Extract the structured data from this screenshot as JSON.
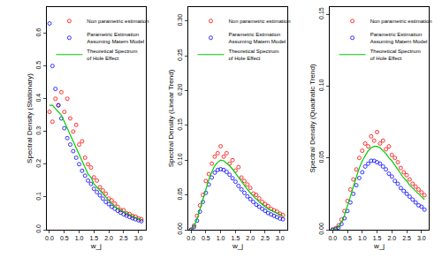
{
  "chart_data": [
    {
      "type": "scatter",
      "x_label": "w_j",
      "y_label": "Spectral Density (Stationary)",
      "xlim": [
        -0.1,
        3.25
      ],
      "xticks": [
        {
          "value": 0,
          "label": "0.0"
        },
        {
          "value": 0.5,
          "label": "0.5"
        },
        {
          "value": 1,
          "label": "1.0"
        },
        {
          "value": 1.5,
          "label": "1.5"
        },
        {
          "value": 2,
          "label": "2.0"
        },
        {
          "value": 2.5,
          "label": "2.5"
        },
        {
          "value": 3,
          "label": "3.0"
        }
      ],
      "ylim": [
        0,
        0.68
      ],
      "yticks": [
        {
          "value": 0,
          "label": "0.0"
        },
        {
          "value": 0.1,
          "label": "0.1"
        },
        {
          "value": 0.2,
          "label": "0.2"
        },
        {
          "value": 0.3,
          "label": "0.3"
        },
        {
          "value": 0.4,
          "label": "0.4"
        },
        {
          "value": 0.5,
          "label": "0.5"
        },
        {
          "value": 0.6,
          "label": "0.6"
        }
      ],
      "legend": "top",
      "grid": false,
      "x": [
        0,
        0.1,
        0.2,
        0.3,
        0.4,
        0.5,
        0.6,
        0.7,
        0.8,
        0.9,
        1.0,
        1.1,
        1.2,
        1.3,
        1.4,
        1.5,
        1.6,
        1.7,
        1.8,
        1.9,
        2.0,
        2.1,
        2.2,
        2.3,
        2.4,
        2.5,
        2.6,
        2.7,
        2.8,
        2.9,
        3.0,
        3.1
      ],
      "series": [
        {
          "name": "Non parametric estimation",
          "type": "scatter",
          "marker": "circle-open",
          "color": "#ff0000",
          "values": [
            0.36,
            0.33,
            0.4,
            0.38,
            0.42,
            0.36,
            0.4,
            0.34,
            0.3,
            0.32,
            0.26,
            0.27,
            0.22,
            0.2,
            0.19,
            0.16,
            0.15,
            0.13,
            0.12,
            0.11,
            0.095,
            0.09,
            0.08,
            0.07,
            0.06,
            0.06,
            0.05,
            0.048,
            0.042,
            0.04,
            0.035,
            0.032
          ]
        },
        {
          "name": "Parametric Estimation Assuming Matern Model",
          "type": "scatter",
          "marker": "circle-open",
          "color": "#0000ff",
          "values": [
            0.63,
            0.5,
            0.43,
            0.38,
            0.34,
            0.31,
            0.28,
            0.26,
            0.24,
            0.22,
            0.2,
            0.18,
            0.165,
            0.15,
            0.14,
            0.125,
            0.115,
            0.105,
            0.095,
            0.085,
            0.078,
            0.07,
            0.064,
            0.058,
            0.052,
            0.047,
            0.043,
            0.039,
            0.035,
            0.032,
            0.029,
            0.026
          ]
        },
        {
          "name": "Theoretical Spectrum of Hole Effect",
          "type": "line",
          "line_style": "solid",
          "color": "#00cc00",
          "values": [
            0.38,
            0.38,
            0.37,
            0.36,
            0.35,
            0.33,
            0.31,
            0.29,
            0.27,
            0.25,
            0.23,
            0.21,
            0.19,
            0.17,
            0.16,
            0.14,
            0.13,
            0.12,
            0.11,
            0.1,
            0.09,
            0.08,
            0.07,
            0.065,
            0.06,
            0.055,
            0.05,
            0.045,
            0.04,
            0.037,
            0.034,
            0.03
          ]
        }
      ]
    },
    {
      "type": "scatter",
      "x_label": "w_j",
      "y_label": "Spectral Density (Linear Trend)",
      "xlim": [
        -0.1,
        3.25
      ],
      "xticks": [
        {
          "value": 0,
          "label": "0.0"
        },
        {
          "value": 0.5,
          "label": "0.5"
        },
        {
          "value": 1,
          "label": "1.0"
        },
        {
          "value": 1.5,
          "label": "1.5"
        },
        {
          "value": 2,
          "label": "2.0"
        },
        {
          "value": 2.5,
          "label": "2.5"
        },
        {
          "value": 3,
          "label": "3.0"
        }
      ],
      "ylim": [
        0,
        0.32
      ],
      "yticks": [
        {
          "value": 0,
          "label": "0.00"
        },
        {
          "value": 0.05,
          "label": "0.05"
        },
        {
          "value": 0.1,
          "label": "0.10"
        },
        {
          "value": 0.15,
          "label": "0.15"
        },
        {
          "value": 0.2,
          "label": "0.20"
        },
        {
          "value": 0.25,
          "label": "0.25"
        },
        {
          "value": 0.3,
          "label": "0.30"
        }
      ],
      "legend": "top",
      "grid": false,
      "x": [
        0,
        0.1,
        0.2,
        0.3,
        0.4,
        0.5,
        0.6,
        0.7,
        0.8,
        0.9,
        1.0,
        1.1,
        1.2,
        1.3,
        1.4,
        1.5,
        1.6,
        1.7,
        1.8,
        1.9,
        2.0,
        2.1,
        2.2,
        2.3,
        2.4,
        2.5,
        2.6,
        2.7,
        2.8,
        2.9,
        3.0,
        3.1
      ],
      "series": [
        {
          "name": "Non parametric estimation",
          "type": "scatter",
          "marker": "circle-open",
          "color": "#ff0000",
          "values": [
            0,
            0.006,
            0.02,
            0.035,
            0.05,
            0.07,
            0.08,
            0.095,
            0.105,
            0.11,
            0.12,
            0.105,
            0.11,
            0.095,
            0.1,
            0.085,
            0.09,
            0.075,
            0.07,
            0.065,
            0.06,
            0.052,
            0.05,
            0.045,
            0.04,
            0.037,
            0.034,
            0.03,
            0.028,
            0.026,
            0.023,
            0.021
          ]
        },
        {
          "name": "Parametric Estimation Assuming Matern Model",
          "type": "scatter",
          "marker": "circle-open",
          "color": "#0000ff",
          "values": [
            0,
            0.004,
            0.013,
            0.026,
            0.04,
            0.053,
            0.065,
            0.075,
            0.082,
            0.086,
            0.087,
            0.086,
            0.083,
            0.079,
            0.074,
            0.069,
            0.063,
            0.058,
            0.053,
            0.048,
            0.044,
            0.04,
            0.036,
            0.033,
            0.03,
            0.027,
            0.024,
            0.022,
            0.02,
            0.018,
            0.016,
            0.015
          ]
        },
        {
          "name": "Theoretical Spectrum of Hole Effect",
          "type": "line",
          "line_style": "solid",
          "color": "#00cc00",
          "values": [
            0,
            0.005,
            0.015,
            0.03,
            0.045,
            0.06,
            0.072,
            0.083,
            0.092,
            0.097,
            0.1,
            0.099,
            0.096,
            0.092,
            0.087,
            0.081,
            0.075,
            0.069,
            0.063,
            0.058,
            0.053,
            0.048,
            0.044,
            0.04,
            0.036,
            0.033,
            0.03,
            0.028,
            0.025,
            0.023,
            0.021,
            0.02
          ]
        }
      ]
    },
    {
      "type": "scatter",
      "x_label": "w_j",
      "y_label": "Spectral Density (Quadratic Trend)",
      "xlim": [
        -0.1,
        3.25
      ],
      "xticks": [
        {
          "value": 0,
          "label": "0.0"
        },
        {
          "value": 0.5,
          "label": "0.5"
        },
        {
          "value": 1,
          "label": "1.0"
        },
        {
          "value": 1.5,
          "label": "1.5"
        },
        {
          "value": 2,
          "label": "2.0"
        },
        {
          "value": 2.5,
          "label": "2.5"
        },
        {
          "value": 3,
          "label": "3.0"
        }
      ],
      "ylim": [
        0,
        0.155
      ],
      "yticks": [
        {
          "value": 0,
          "label": "0.00"
        },
        {
          "value": 0.05,
          "label": "0.05"
        },
        {
          "value": 0.1,
          "label": "0.10"
        },
        {
          "value": 0.15,
          "label": "0.15"
        }
      ],
      "legend": "top",
      "grid": false,
      "x": [
        0,
        0.1,
        0.2,
        0.3,
        0.4,
        0.5,
        0.6,
        0.7,
        0.8,
        0.9,
        1.0,
        1.1,
        1.2,
        1.3,
        1.4,
        1.5,
        1.6,
        1.7,
        1.8,
        1.9,
        2.0,
        2.1,
        2.2,
        2.3,
        2.4,
        2.5,
        2.6,
        2.7,
        2.8,
        2.9,
        3.0,
        3.1
      ],
      "series": [
        {
          "name": "Non parametric estimation",
          "type": "scatter",
          "marker": "circle-open",
          "color": "#ff0000",
          "values": [
            0,
            0.001,
            0.003,
            0.007,
            0.013,
            0.02,
            0.028,
            0.035,
            0.042,
            0.05,
            0.055,
            0.06,
            0.058,
            0.065,
            0.062,
            0.068,
            0.06,
            0.062,
            0.056,
            0.058,
            0.052,
            0.05,
            0.047,
            0.043,
            0.04,
            0.038,
            0.035,
            0.032,
            0.03,
            0.028,
            0.026,
            0.024
          ]
        },
        {
          "name": "Parametric Estimation Assuming Matern Model",
          "type": "scatter",
          "marker": "circle-open",
          "color": "#0000ff",
          "values": [
            0,
            0.0004,
            0.0015,
            0.004,
            0.008,
            0.013,
            0.019,
            0.025,
            0.031,
            0.036,
            0.04,
            0.044,
            0.046,
            0.048,
            0.048,
            0.047,
            0.046,
            0.044,
            0.042,
            0.039,
            0.037,
            0.034,
            0.032,
            0.029,
            0.027,
            0.025,
            0.023,
            0.021,
            0.019,
            0.017,
            0.016,
            0.014
          ]
        },
        {
          "name": "Theoretical Spectrum of Hole Effect",
          "type": "line",
          "line_style": "solid",
          "color": "#00cc00",
          "values": [
            0,
            0.0005,
            0.002,
            0.005,
            0.01,
            0.016,
            0.023,
            0.03,
            0.037,
            0.043,
            0.048,
            0.052,
            0.055,
            0.057,
            0.058,
            0.058,
            0.057,
            0.055,
            0.053,
            0.05,
            0.048,
            0.045,
            0.042,
            0.039,
            0.036,
            0.034,
            0.031,
            0.029,
            0.027,
            0.025,
            0.023,
            0.021
          ]
        }
      ]
    }
  ]
}
